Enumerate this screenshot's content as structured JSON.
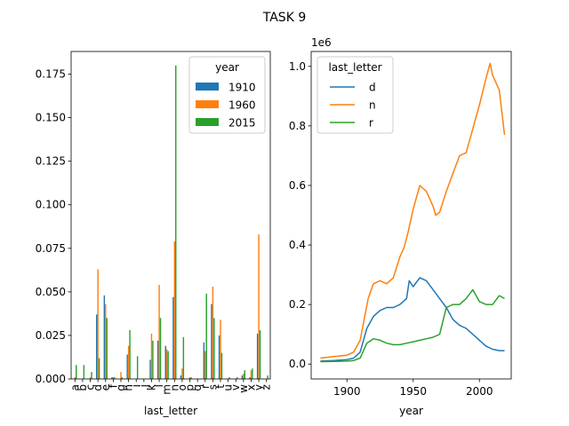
{
  "figure": {
    "suptitle": "TASK 9"
  },
  "colors": {
    "c1910": "#1f77b4",
    "c1960": "#ff7f0e",
    "c2015": "#2ca02c"
  },
  "chart_data": [
    {
      "type": "bar",
      "xlabel": "last_letter",
      "ylabel": "",
      "ylim": [
        0,
        0.188
      ],
      "yticks": [
        "0.000",
        "0.025",
        "0.050",
        "0.075",
        "0.100",
        "0.125",
        "0.150",
        "0.175"
      ],
      "categories": [
        "a",
        "b",
        "c",
        "d",
        "e",
        "f",
        "g",
        "h",
        "i",
        "j",
        "k",
        "l",
        "m",
        "n",
        "o",
        "p",
        "q",
        "r",
        "s",
        "t",
        "u",
        "v",
        "w",
        "x",
        "y",
        "z"
      ],
      "legend": {
        "title": "year",
        "placement": "top-right"
      },
      "series": [
        {
          "name": "1910",
          "color": "#1f77b4",
          "values": [
            0.0,
            0.0,
            0.0,
            0.037,
            0.048,
            0.001,
            0.0,
            0.014,
            0.0,
            0.0,
            0.011,
            0.022,
            0.019,
            0.047,
            0.002,
            0.0,
            0.0,
            0.021,
            0.043,
            0.025,
            0.0,
            0.0,
            0.002,
            0.001,
            0.026,
            0.0
          ]
        },
        {
          "name": "1960",
          "color": "#ff7f0e",
          "values": [
            0.001,
            0.0,
            0.001,
            0.063,
            0.043,
            0.001,
            0.004,
            0.019,
            0.0,
            0.0,
            0.026,
            0.054,
            0.017,
            0.079,
            0.006,
            0.001,
            0.0,
            0.016,
            0.053,
            0.034,
            0.0,
            0.0,
            0.003,
            0.005,
            0.083,
            0.0
          ]
        },
        {
          "name": "2015",
          "color": "#2ca02c",
          "values": [
            0.008,
            0.008,
            0.004,
            0.012,
            0.035,
            0.001,
            0.001,
            0.028,
            0.013,
            0.0,
            0.022,
            0.035,
            0.016,
            0.18,
            0.024,
            0.001,
            0.0,
            0.049,
            0.035,
            0.015,
            0.001,
            0.001,
            0.005,
            0.006,
            0.028,
            0.002
          ]
        }
      ]
    },
    {
      "type": "line",
      "xlabel": "year",
      "ylabel": "",
      "y_offset_label": "1e6",
      "xlim": [
        1873,
        2024
      ],
      "ylim": [
        -0.05,
        1.05
      ],
      "xticks": [
        "1900",
        "1950",
        "2000"
      ],
      "yticks": [
        "0.0",
        "0.2",
        "0.4",
        "0.6",
        "0.8",
        "1.0"
      ],
      "legend": {
        "title": "last_letter",
        "placement": "top-left"
      },
      "series": [
        {
          "name": "d",
          "color": "#1f77b4",
          "x": [
            1880,
            1890,
            1900,
            1905,
            1910,
            1915,
            1920,
            1925,
            1930,
            1935,
            1940,
            1945,
            1947,
            1950,
            1955,
            1960,
            1965,
            1970,
            1975,
            1980,
            1985,
            1990,
            1995,
            2000,
            2005,
            2010,
            2015,
            2019
          ],
          "y": [
            0.01,
            0.012,
            0.015,
            0.02,
            0.04,
            0.12,
            0.16,
            0.18,
            0.19,
            0.19,
            0.2,
            0.22,
            0.28,
            0.26,
            0.29,
            0.28,
            0.25,
            0.22,
            0.19,
            0.15,
            0.13,
            0.12,
            0.1,
            0.08,
            0.06,
            0.05,
            0.045,
            0.045
          ]
        },
        {
          "name": "n",
          "color": "#ff7f0e",
          "x": [
            1880,
            1890,
            1900,
            1905,
            1910,
            1913,
            1916,
            1920,
            1925,
            1930,
            1935,
            1940,
            1943,
            1946,
            1950,
            1955,
            1960,
            1965,
            1967,
            1970,
            1975,
            1980,
            1985,
            1990,
            1995,
            2000,
            2005,
            2008,
            2010,
            2015,
            2019
          ],
          "y": [
            0.02,
            0.025,
            0.03,
            0.04,
            0.08,
            0.15,
            0.22,
            0.27,
            0.28,
            0.27,
            0.29,
            0.36,
            0.39,
            0.44,
            0.52,
            0.6,
            0.58,
            0.53,
            0.5,
            0.51,
            0.58,
            0.64,
            0.7,
            0.71,
            0.79,
            0.87,
            0.96,
            1.01,
            0.97,
            0.92,
            0.77
          ]
        },
        {
          "name": "r",
          "color": "#2ca02c",
          "x": [
            1880,
            1890,
            1900,
            1905,
            1910,
            1915,
            1920,
            1925,
            1930,
            1935,
            1940,
            1945,
            1950,
            1955,
            1960,
            1965,
            1970,
            1975,
            1980,
            1985,
            1990,
            1995,
            2000,
            2005,
            2010,
            2015,
            2019
          ],
          "y": [
            0.008,
            0.009,
            0.01,
            0.012,
            0.02,
            0.07,
            0.085,
            0.08,
            0.07,
            0.065,
            0.065,
            0.07,
            0.075,
            0.08,
            0.085,
            0.09,
            0.1,
            0.19,
            0.2,
            0.2,
            0.22,
            0.25,
            0.21,
            0.2,
            0.2,
            0.23,
            0.22
          ]
        }
      ]
    }
  ]
}
